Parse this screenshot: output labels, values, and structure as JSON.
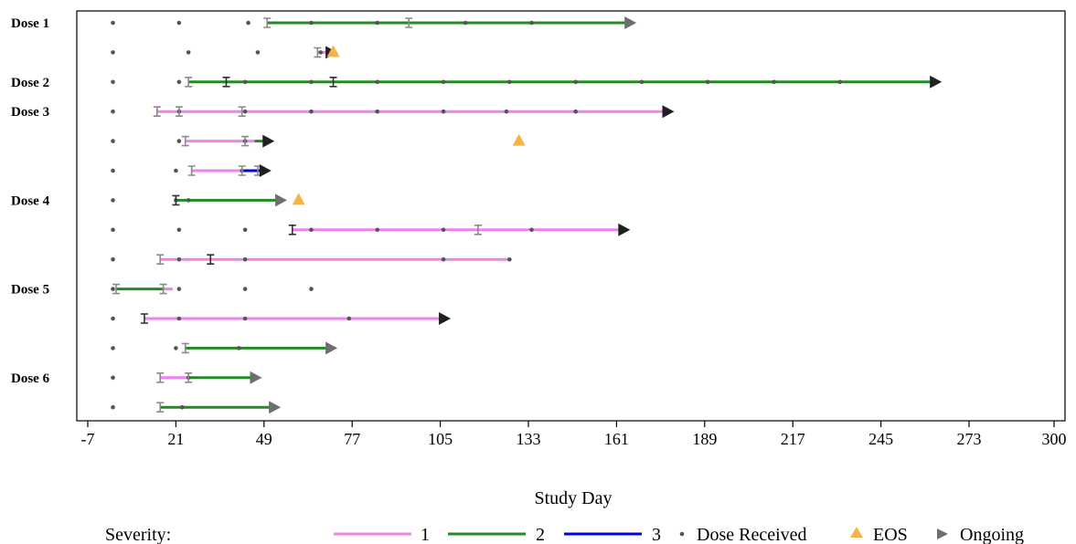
{
  "chart_data": {
    "type": "swimmer",
    "xlabel": "Study Day",
    "ylabel": "",
    "title": "",
    "xlim": [
      -7,
      300
    ],
    "xticks": [
      -7,
      21,
      49,
      77,
      105,
      133,
      161,
      189,
      217,
      245,
      273,
      300
    ],
    "grid": false,
    "legend_title": "Severity:",
    "legend_position": "bottom",
    "severity_colors": {
      "1": "#ee82ee",
      "2": "#228b22",
      "3": "#0000e0"
    },
    "marker_colors": {
      "dose": "#555555",
      "eos": "#f5b447",
      "ongoing_dark": "#202020",
      "ongoing_light": "#6e6e6e",
      "cap_dark": "#303030",
      "cap_light": "#8a8a8a"
    },
    "legend": [
      {
        "key": "sev1",
        "kind": "line",
        "color_key": "1",
        "label": "1"
      },
      {
        "key": "sev2",
        "kind": "line",
        "color_key": "2",
        "label": "2"
      },
      {
        "key": "sev3",
        "kind": "line",
        "color_key": "3",
        "label": "3"
      },
      {
        "key": "dose",
        "kind": "dot",
        "label": "Dose Received"
      },
      {
        "key": "eos",
        "kind": "triangle",
        "label": "EOS"
      },
      {
        "key": "ongoing",
        "kind": "arrow",
        "label": "Ongoing"
      }
    ],
    "rows": [
      {
        "label": "Dose 1",
        "doses": [
          1,
          22,
          44,
          64,
          85,
          113,
          134
        ],
        "segments": [
          {
            "start": 50,
            "end": 165,
            "severity": "2"
          }
        ],
        "caps": [
          {
            "x": 50,
            "shade": "light"
          },
          {
            "x": 95,
            "shade": "light"
          }
        ],
        "ongoing": {
          "x": 165,
          "shade": "light"
        },
        "eos": null
      },
      {
        "label": "",
        "doses": [
          1,
          25,
          47,
          67
        ],
        "segments": [
          {
            "start": 66,
            "end": 70,
            "severity": "1"
          }
        ],
        "caps": [
          {
            "x": 66,
            "shade": "light"
          }
        ],
        "ongoing": {
          "x": 70,
          "shade": "dark"
        },
        "eos": 71
      },
      {
        "label": "Dose 2",
        "doses": [
          1,
          22,
          43,
          64,
          85,
          106,
          127,
          148,
          169,
          190,
          211,
          232
        ],
        "segments": [
          {
            "start": 25,
            "end": 262,
            "severity": "2"
          }
        ],
        "caps": [
          {
            "x": 25,
            "shade": "light"
          },
          {
            "x": 37,
            "shade": "dark"
          },
          {
            "x": 71,
            "shade": "dark"
          }
        ],
        "ongoing": {
          "x": 262,
          "shade": "dark"
        },
        "eos": null
      },
      {
        "label": "Dose 3",
        "doses": [
          1,
          22,
          43,
          64,
          85,
          106,
          126,
          148
        ],
        "segments": [
          {
            "start": 15,
            "end": 177,
            "severity": "1"
          }
        ],
        "caps": [
          {
            "x": 15,
            "shade": "light"
          },
          {
            "x": 22,
            "shade": "light"
          },
          {
            "x": 42,
            "shade": "light"
          }
        ],
        "ongoing": {
          "x": 177,
          "shade": "dark"
        },
        "eos": null
      },
      {
        "label": "",
        "doses": [
          1,
          22,
          43
        ],
        "segments": [
          {
            "start": 24,
            "end": 46,
            "severity": "1"
          },
          {
            "start": 46,
            "end": 50,
            "severity": "2"
          }
        ],
        "caps": [
          {
            "x": 24,
            "shade": "light"
          },
          {
            "x": 43,
            "shade": "light"
          }
        ],
        "ongoing": {
          "x": 50,
          "shade": "dark"
        },
        "eos": 130
      },
      {
        "label": "",
        "doses": [
          1,
          21,
          42
        ],
        "segments": [
          {
            "start": 26,
            "end": 42,
            "severity": "1"
          },
          {
            "start": 42,
            "end": 49,
            "severity": "3"
          }
        ],
        "caps": [
          {
            "x": 26,
            "shade": "light"
          },
          {
            "x": 42,
            "shade": "light"
          },
          {
            "x": 47,
            "shade": "light"
          }
        ],
        "ongoing": {
          "x": 49,
          "shade": "dark"
        },
        "eos": null
      },
      {
        "label": "Dose 4",
        "doses": [
          1,
          21,
          25
        ],
        "segments": [
          {
            "start": 21,
            "end": 54,
            "severity": "2"
          }
        ],
        "caps": [
          {
            "x": 21,
            "shade": "dark"
          }
        ],
        "ongoing": {
          "x": 54,
          "shade": "light"
        },
        "eos": 60
      },
      {
        "label": "",
        "doses": [
          1,
          22,
          43,
          64,
          85,
          106,
          134
        ],
        "segments": [
          {
            "start": 58,
            "end": 163,
            "severity": "1"
          }
        ],
        "caps": [
          {
            "x": 58,
            "shade": "dark"
          },
          {
            "x": 117,
            "shade": "light"
          }
        ],
        "ongoing": {
          "x": 163,
          "shade": "dark"
        },
        "eos": null
      },
      {
        "label": "",
        "doses": [
          1,
          22,
          43,
          106,
          127
        ],
        "segments": [
          {
            "start": 16,
            "end": 127,
            "severity": "1"
          }
        ],
        "caps": [
          {
            "x": 16,
            "shade": "light"
          },
          {
            "x": 32,
            "shade": "dark"
          }
        ],
        "ongoing": null,
        "eos": null
      },
      {
        "label": "Dose 5",
        "doses": [
          1,
          22,
          43,
          64
        ],
        "segments": [
          {
            "start": 2,
            "end": 17,
            "severity": "2"
          },
          {
            "start": 17,
            "end": 20,
            "severity": "1"
          }
        ],
        "caps": [
          {
            "x": 2,
            "shade": "light"
          },
          {
            "x": 17,
            "shade": "light"
          }
        ],
        "ongoing": null,
        "eos": null
      },
      {
        "label": "",
        "doses": [
          1,
          22,
          43,
          76
        ],
        "segments": [
          {
            "start": 11,
            "end": 106,
            "severity": "1"
          }
        ],
        "caps": [
          {
            "x": 11,
            "shade": "dark"
          }
        ],
        "ongoing": {
          "x": 106,
          "shade": "dark"
        },
        "eos": null
      },
      {
        "label": "",
        "doses": [
          1,
          21,
          41
        ],
        "segments": [
          {
            "start": 24,
            "end": 70,
            "severity": "2"
          }
        ],
        "caps": [
          {
            "x": 24,
            "shade": "light"
          }
        ],
        "ongoing": {
          "x": 70,
          "shade": "light"
        },
        "eos": null
      },
      {
        "label": "Dose 6",
        "doses": [
          1,
          25
        ],
        "segments": [
          {
            "start": 16,
            "end": 25,
            "severity": "1"
          },
          {
            "start": 25,
            "end": 46,
            "severity": "2"
          }
        ],
        "caps": [
          {
            "x": 16,
            "shade": "light"
          },
          {
            "x": 25,
            "shade": "light"
          }
        ],
        "ongoing": {
          "x": 46,
          "shade": "light"
        },
        "eos": null
      },
      {
        "label": "",
        "doses": [
          1,
          23
        ],
        "segments": [
          {
            "start": 16,
            "end": 52,
            "severity": "2"
          }
        ],
        "caps": [
          {
            "x": 16,
            "shade": "light"
          }
        ],
        "ongoing": {
          "x": 52,
          "shade": "light"
        },
        "eos": null
      }
    ]
  }
}
